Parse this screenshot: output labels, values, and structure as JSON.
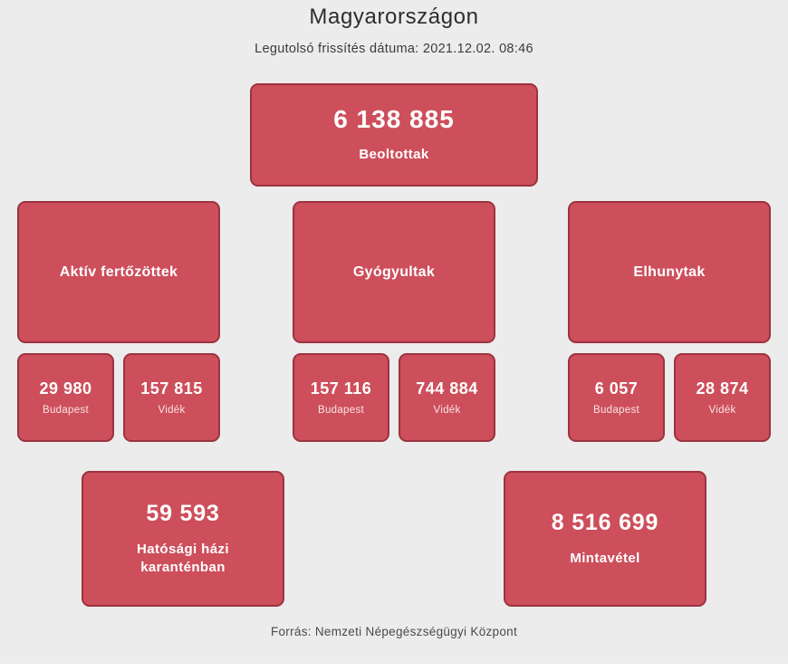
{
  "header": {
    "title": "Magyarországon",
    "subtitle": "Legutolsó frissítés dátuma: 2021.12.02. 08:46"
  },
  "colors": {
    "page_bg": "#ececec",
    "card_bg": "#cd4f5b",
    "card_border": "#9d3340",
    "card_text": "#ffffff"
  },
  "stats": {
    "beoltottak": {
      "value": "6 138 885",
      "label": "Beoltottak"
    },
    "columns": [
      {
        "title": "Aktív fertőzöttek",
        "budapest": {
          "value": "29 980",
          "label": "Budapest"
        },
        "videk": {
          "value": "157 815",
          "label": "Vidék"
        }
      },
      {
        "title": "Gyógyultak",
        "budapest": {
          "value": "157 116",
          "label": "Budapest"
        },
        "videk": {
          "value": "744 884",
          "label": "Vidék"
        }
      },
      {
        "title": "Elhunytak",
        "budapest": {
          "value": "6 057",
          "label": "Budapest"
        },
        "videk": {
          "value": "28 874",
          "label": "Vidék"
        }
      }
    ],
    "karanten": {
      "value": "59 593",
      "label": "Hatósági házi karanténban"
    },
    "mintavetel": {
      "value": "8 516 699",
      "label": "Mintavétel"
    }
  },
  "footer": {
    "source": "Forrás: Nemzeti Népegészségügyi Központ"
  }
}
